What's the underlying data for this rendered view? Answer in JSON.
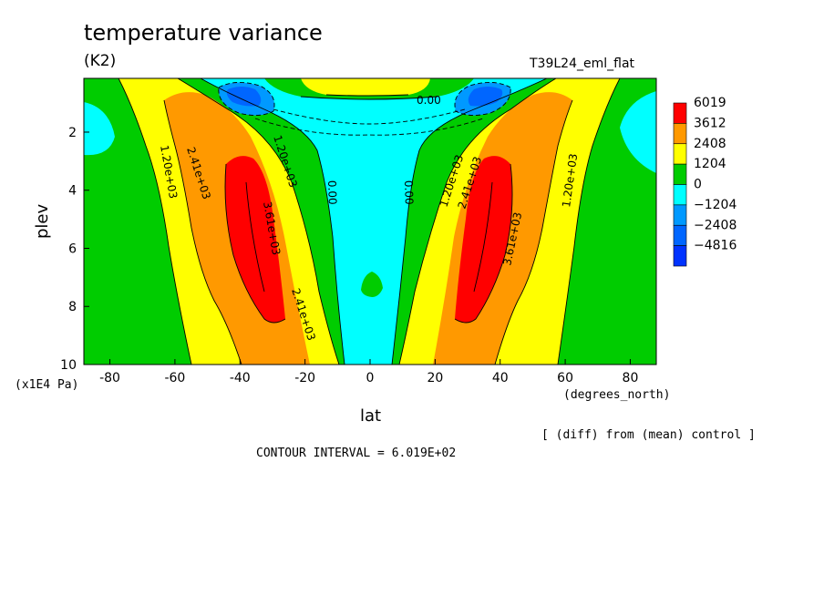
{
  "chart_data": {
    "type": "heatmap",
    "title": "temperature variance",
    "units": "(K2)",
    "experiment": "T39L24_eml_flat",
    "xlabel": "lat",
    "xunits": "(degrees_north)",
    "ylabel": "plev",
    "yunits": "(x1E4 Pa)",
    "xlim": [
      -88,
      88
    ],
    "ylim": [
      0.15,
      10
    ],
    "x_ticks": [
      "-80",
      "-60",
      "-40",
      "-20",
      "0",
      "20",
      "40",
      "60",
      "80"
    ],
    "x_tick_values": [
      -80,
      -60,
      -40,
      -20,
      0,
      20,
      40,
      60,
      80
    ],
    "y_ticks": [
      "2",
      "4",
      "6",
      "8",
      "10"
    ],
    "y_tick_values": [
      2,
      4,
      6,
      8,
      10
    ],
    "y_inverted": true,
    "colorbar": {
      "labels": [
        "6019",
        "3612",
        "2408",
        "1204",
        "0",
        "−1204",
        "−2408",
        "−4816"
      ],
      "colors": [
        "#ff0000",
        "#ff9900",
        "#ffff00",
        "#00cc00",
        "#00ffff",
        "#0099ff",
        "#0066ff",
        "#0033ff"
      ]
    },
    "contour_labels": [
      "1.20e+03",
      "2.41e+03",
      "1.20e+03",
      "0.00",
      "3.61e+03",
      "2.41e+03",
      "0.00",
      "0.00",
      "1.20e+03",
      "2.41e+03",
      "3.61e+03",
      "1.20e+03",
      "0.00"
    ],
    "contour_interval": "CONTOUR INTERVAL = 6.019E+02",
    "note": "[ (diff) from (mean) control ]",
    "features": [
      {
        "desc": "max",
        "lat": -40,
        "plev_range": [
          2.8,
          8.6
        ],
        "level": 3612
      },
      {
        "desc": "max",
        "lat": 39,
        "plev_range": [
          2.8,
          8.6
        ],
        "level": 3612
      },
      {
        "desc": "min",
        "lat": -37,
        "plev": 0.6,
        "level": -2408
      },
      {
        "desc": "min",
        "lat": 37,
        "plev": 0.6,
        "level": -2408
      },
      {
        "desc": "equatorial min",
        "lat": 0,
        "plev_range": [
          0.5,
          10
        ],
        "level": -1204
      }
    ]
  }
}
